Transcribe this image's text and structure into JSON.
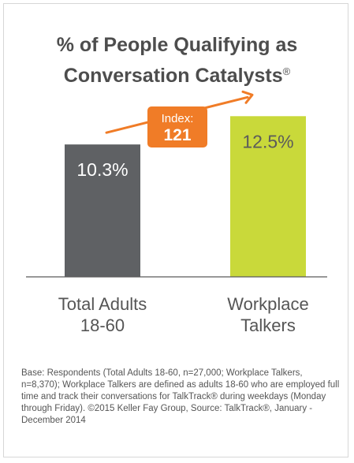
{
  "title": {
    "line1": "% of People Qualifying as",
    "line2": "Conversation Catalysts",
    "mark": "®"
  },
  "colors": {
    "bar_total": "#5f6164",
    "bar_workplace": "#c9d93a",
    "accent": "#f07c27",
    "baseline": "#5a5a5a",
    "label_text": "#555555"
  },
  "chart_data": {
    "type": "bar",
    "title": "% of People Qualifying as Conversation Catalysts®",
    "categories": [
      [
        "Total Adults",
        "18-60"
      ],
      [
        "Workplace",
        "Talkers"
      ]
    ],
    "values": [
      10.3,
      12.5
    ],
    "value_labels": [
      "10.3%",
      "12.5%"
    ],
    "ylim": [
      0,
      13.5
    ],
    "grid": false,
    "annotation": {
      "label": "Index:",
      "value": "121"
    }
  },
  "footnote": "Base: Respondents (Total Adults 18-60, n=27,000; Workplace Talkers, n=8,370); Workplace Talkers are defined as adults 18-60 who are employed full time and track their conversations for TalkTrack® during weekdays (Monday through Friday). ©2015 Keller Fay Group, Source: TalkTrack®, January - December 2014"
}
